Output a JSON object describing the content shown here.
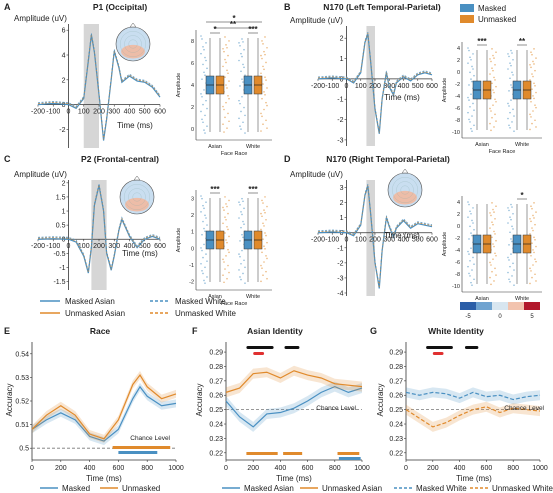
{
  "colors": {
    "blue": "#4a90c2",
    "orange": "#e08a2c",
    "grey": "#d6d6d6",
    "neg": "#2b5ea7",
    "pos": "#b2182b"
  },
  "panels": {
    "A": {
      "letter": "A",
      "title": "P1  (Occipital)",
      "ylabel": "Amplitude (uV)",
      "xlabel": "Time (ms)"
    },
    "B": {
      "letter": "B",
      "title": "N170  (Left Temporal-Parietal)",
      "ylabel": "Amplitude (uV)",
      "xlabel": "Time (ms)"
    },
    "C": {
      "letter": "C",
      "title": "P2  (Frontal-central)",
      "ylabel": "Amplitude (uV)",
      "xlabel": "Time (ms)"
    },
    "D": {
      "letter": "D",
      "title": "N170  (Right Temporal-Parietal)",
      "ylabel": "Amplitude (uV)",
      "xlabel": "Time (ms)"
    },
    "E": {
      "letter": "E",
      "title": "Race",
      "ylabel": "Accuracy",
      "xlabel": "Time (ms)",
      "chance": "Chance Level"
    },
    "F": {
      "letter": "F",
      "title": "Asian Identity",
      "ylabel": "Accuracy",
      "xlabel": "Time (ms)",
      "chance": "Chance Level"
    },
    "G": {
      "letter": "G",
      "title": "White Identity",
      "ylabel": "Accuracy",
      "xlabel": "Time (ms)",
      "chance": "Chance Level"
    }
  },
  "box": {
    "ylabel": "Amplitude",
    "xlabel": "Face Race",
    "groups": [
      "Asian",
      "White"
    ]
  },
  "legend_box": {
    "masked": "Masked",
    "unmasked": "Unmasked"
  },
  "legend_erp": {
    "masked_asian": "Masked Asian",
    "unmasked_asian": "Unmasked Asian",
    "masked_white": "Masked White",
    "unmasked_white": "Unmasked White"
  },
  "legend_E": {
    "masked": "Masked",
    "unmasked": "Unmasked"
  },
  "legend_FG": {
    "masked_asian": "Masked Asian",
    "unmasked_asian": "Unmasked Asian",
    "masked_white": "Masked White",
    "unmasked_white": "Unmasked White"
  },
  "colorbar": {
    "ticks": [
      "-5",
      "0",
      "5"
    ]
  },
  "chart_data": [
    {
      "panel": "A",
      "type": "line",
      "x": [
        -200,
        -100,
        0,
        50,
        100,
        130,
        150,
        170,
        200,
        230,
        250,
        280,
        300,
        330,
        350,
        400,
        450,
        500,
        550,
        600
      ],
      "series": [
        {
          "values": [
            0,
            0.1,
            0,
            -0.3,
            0.5,
            3.5,
            5.6,
            4.2,
            0.8,
            -2.9,
            -1.2,
            2.0,
            4.3,
            3.0,
            1.8,
            2.3,
            1.9,
            1.8,
            1.4,
            0.6
          ]
        }
      ],
      "xticks": [
        -200,
        -100,
        0,
        100,
        200,
        300,
        400,
        500,
        600
      ],
      "yticks": [
        -2,
        0,
        2,
        4,
        6
      ],
      "ylim": [
        -3.5,
        6.5
      ],
      "shade": [
        100,
        200
      ]
    },
    {
      "panel": "B",
      "type": "line",
      "x": [
        -200,
        -100,
        0,
        50,
        100,
        130,
        150,
        170,
        200,
        230,
        250,
        280,
        300,
        330,
        350,
        400,
        450,
        500,
        550,
        600
      ],
      "series": [
        {
          "values": [
            0,
            0.05,
            0,
            -0.2,
            0.3,
            1.8,
            2.2,
            0.8,
            -1.5,
            -2.7,
            -1.0,
            0.3,
            -0.4,
            -0.8,
            -0.2,
            0.1,
            -0.1,
            0.2,
            0.3,
            0.2
          ]
        }
      ],
      "xticks": [
        -200,
        -100,
        0,
        100,
        200,
        300,
        400,
        500,
        600
      ],
      "yticks": [
        -3,
        -2,
        -1,
        0,
        1,
        2
      ],
      "ylim": [
        -3.3,
        2.6
      ],
      "shade": [
        140,
        200
      ]
    },
    {
      "panel": "C",
      "type": "line",
      "x": [
        -200,
        -100,
        0,
        50,
        100,
        130,
        150,
        170,
        200,
        230,
        250,
        280,
        300,
        330,
        350,
        400,
        450,
        500,
        550,
        600
      ],
      "series": [
        {
          "values": [
            0,
            0.02,
            0,
            -0.1,
            -0.6,
            -1.2,
            -0.3,
            1.2,
            1.9,
            1.0,
            -0.5,
            -1.1,
            -0.6,
            0.3,
            0.7,
            0.1,
            -0.3,
            0.0,
            0.1,
            0.0
          ]
        }
      ],
      "xticks": [
        -200,
        -100,
        0,
        100,
        200,
        300,
        400,
        500,
        600
      ],
      "yticks": [
        -1.5,
        -1,
        -0.5,
        0,
        0.5,
        1,
        1.5,
        2
      ],
      "ylim": [
        -1.8,
        2.1
      ],
      "shade": [
        150,
        250
      ]
    },
    {
      "panel": "D",
      "type": "line",
      "x": [
        -200,
        -100,
        0,
        50,
        100,
        130,
        150,
        170,
        200,
        230,
        250,
        280,
        300,
        330,
        350,
        400,
        450,
        500,
        550,
        600
      ],
      "series": [
        {
          "values": [
            0,
            0.05,
            0,
            -0.2,
            0.5,
            2.5,
            3.1,
            1.2,
            -2.0,
            -3.7,
            -1.2,
            1.0,
            0.4,
            -0.3,
            0.3,
            0.8,
            0.3,
            0.6,
            0.5,
            0.4
          ]
        }
      ],
      "xticks": [
        -200,
        -100,
        0,
        100,
        200,
        300,
        400,
        500,
        600
      ],
      "yticks": [
        -4,
        -3,
        -2,
        -1,
        0,
        1,
        2,
        3
      ],
      "ylim": [
        -4.2,
        3.5
      ],
      "shade": [
        140,
        200
      ]
    },
    {
      "panel": "E",
      "type": "line",
      "x": [
        0,
        100,
        200,
        300,
        400,
        500,
        600,
        700,
        750,
        800,
        900,
        1000
      ],
      "series": [
        {
          "name": "Masked",
          "values": [
            0.508,
            0.512,
            0.515,
            0.512,
            0.505,
            0.503,
            0.508,
            0.521,
            0.526,
            0.522,
            0.518,
            0.519
          ]
        },
        {
          "name": "Unmasked",
          "values": [
            0.508,
            0.514,
            0.518,
            0.514,
            0.506,
            0.504,
            0.512,
            0.527,
            0.531,
            0.526,
            0.521,
            0.523
          ]
        }
      ],
      "xticks": [
        0,
        200,
        400,
        600,
        800,
        1000
      ],
      "yticks": [
        0.5,
        0.51,
        0.52,
        0.53,
        0.54
      ],
      "ylim": [
        0.495,
        0.545
      ],
      "chance": 0.5
    },
    {
      "panel": "F",
      "type": "line",
      "x": [
        0,
        100,
        200,
        300,
        400,
        500,
        600,
        700,
        800,
        900,
        1000
      ],
      "series": [
        {
          "name": "Masked Asian",
          "values": [
            0.256,
            0.245,
            0.238,
            0.247,
            0.248,
            0.251,
            0.256,
            0.262,
            0.266,
            0.262,
            0.265
          ]
        },
        {
          "name": "Unmasked Asian",
          "values": [
            0.262,
            0.265,
            0.275,
            0.276,
            0.272,
            0.277,
            0.274,
            0.272,
            0.268,
            0.267,
            0.266
          ]
        }
      ],
      "xticks": [
        0,
        200,
        400,
        600,
        800,
        1000
      ],
      "yticks": [
        0.22,
        0.23,
        0.24,
        0.25,
        0.26,
        0.27,
        0.28,
        0.29
      ],
      "ylim": [
        0.215,
        0.297
      ],
      "chance": 0.25
    },
    {
      "panel": "G",
      "type": "line",
      "x": [
        0,
        100,
        200,
        300,
        400,
        500,
        600,
        700,
        800,
        900,
        1000
      ],
      "series": [
        {
          "name": "Masked White",
          "values": [
            0.262,
            0.26,
            0.262,
            0.261,
            0.258,
            0.262,
            0.259,
            0.26,
            0.257,
            0.259,
            0.26
          ]
        },
        {
          "name": "Unmasked White",
          "values": [
            0.25,
            0.244,
            0.238,
            0.241,
            0.246,
            0.25,
            0.252,
            0.248,
            0.251,
            0.25,
            0.249
          ]
        }
      ],
      "xticks": [
        0,
        200,
        400,
        600,
        800,
        1000
      ],
      "yticks": [
        0.22,
        0.23,
        0.24,
        0.25,
        0.26,
        0.27,
        0.28,
        0.29
      ],
      "ylim": [
        0.215,
        0.297
      ],
      "chance": 0.25
    }
  ],
  "box_data": [
    {
      "panel": "A",
      "yticks": [
        "0",
        "2",
        "4",
        "6",
        "8"
      ],
      "sig_within": [
        "*",
        "***"
      ],
      "sig_between": [
        "*",
        "**"
      ]
    },
    {
      "panel": "B",
      "yticks": [
        "-10",
        "-8",
        "-6",
        "-4",
        "-2",
        "0",
        "2",
        "4"
      ],
      "sig_within": [
        "***",
        "**"
      ]
    },
    {
      "panel": "C",
      "yticks": [
        "-2",
        "-1",
        "0",
        "1",
        "2",
        "3"
      ],
      "sig_within": [
        "***",
        "***"
      ]
    },
    {
      "panel": "D",
      "yticks": [
        "-10",
        "-8",
        "-6",
        "-4",
        "-2",
        "0",
        "2",
        "4"
      ],
      "sig_within": [
        "",
        "*"
      ]
    }
  ]
}
